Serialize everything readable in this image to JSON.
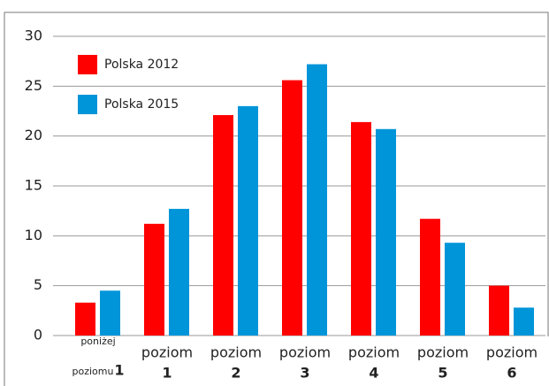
{
  "chart_data": {
    "type": "bar",
    "categories": [
      [
        "poniżej",
        "poziomu",
        "1"
      ],
      [
        "poziom",
        "1"
      ],
      [
        "poziom",
        "2"
      ],
      [
        "poziom",
        "3"
      ],
      [
        "poziom",
        "4"
      ],
      [
        "poziom",
        "5"
      ],
      [
        "poziom",
        "6"
      ]
    ],
    "series": [
      {
        "name": "Polska 2012",
        "color": "#ff0000",
        "values": [
          3.3,
          11.2,
          22.1,
          25.6,
          21.4,
          11.7,
          5.0
        ]
      },
      {
        "name": "Polska 2015",
        "color": "#0095d9",
        "values": [
          4.5,
          12.7,
          23.0,
          27.2,
          20.7,
          9.3,
          2.8
        ]
      }
    ],
    "ylim": [
      0,
      30
    ],
    "yticks": [
      0,
      5,
      10,
      15,
      20,
      25,
      30
    ],
    "grid": true,
    "legend": "top-left"
  }
}
